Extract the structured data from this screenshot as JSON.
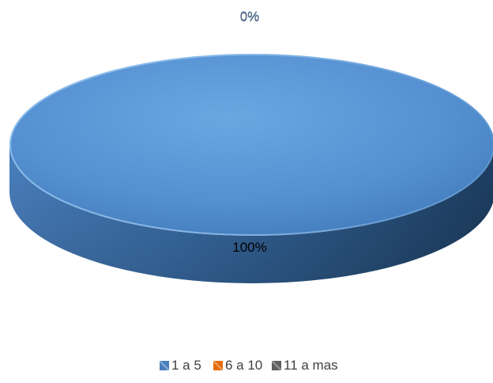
{
  "chart_data": {
    "type": "pie",
    "title": "",
    "categories": [
      "1 a 5",
      "6 a 10",
      "11 a mas"
    ],
    "values": [
      100,
      0,
      0
    ],
    "data_labels": [
      "100%",
      "0%",
      "0%"
    ],
    "colors": [
      "#4f81bd",
      "#c0504d",
      "#7f7f7f"
    ],
    "legend_swatch_colors": [
      "#4a7ebb",
      "#e46c0a",
      "#5f5f5f"
    ],
    "legend_position": "bottom",
    "style": "3d"
  }
}
